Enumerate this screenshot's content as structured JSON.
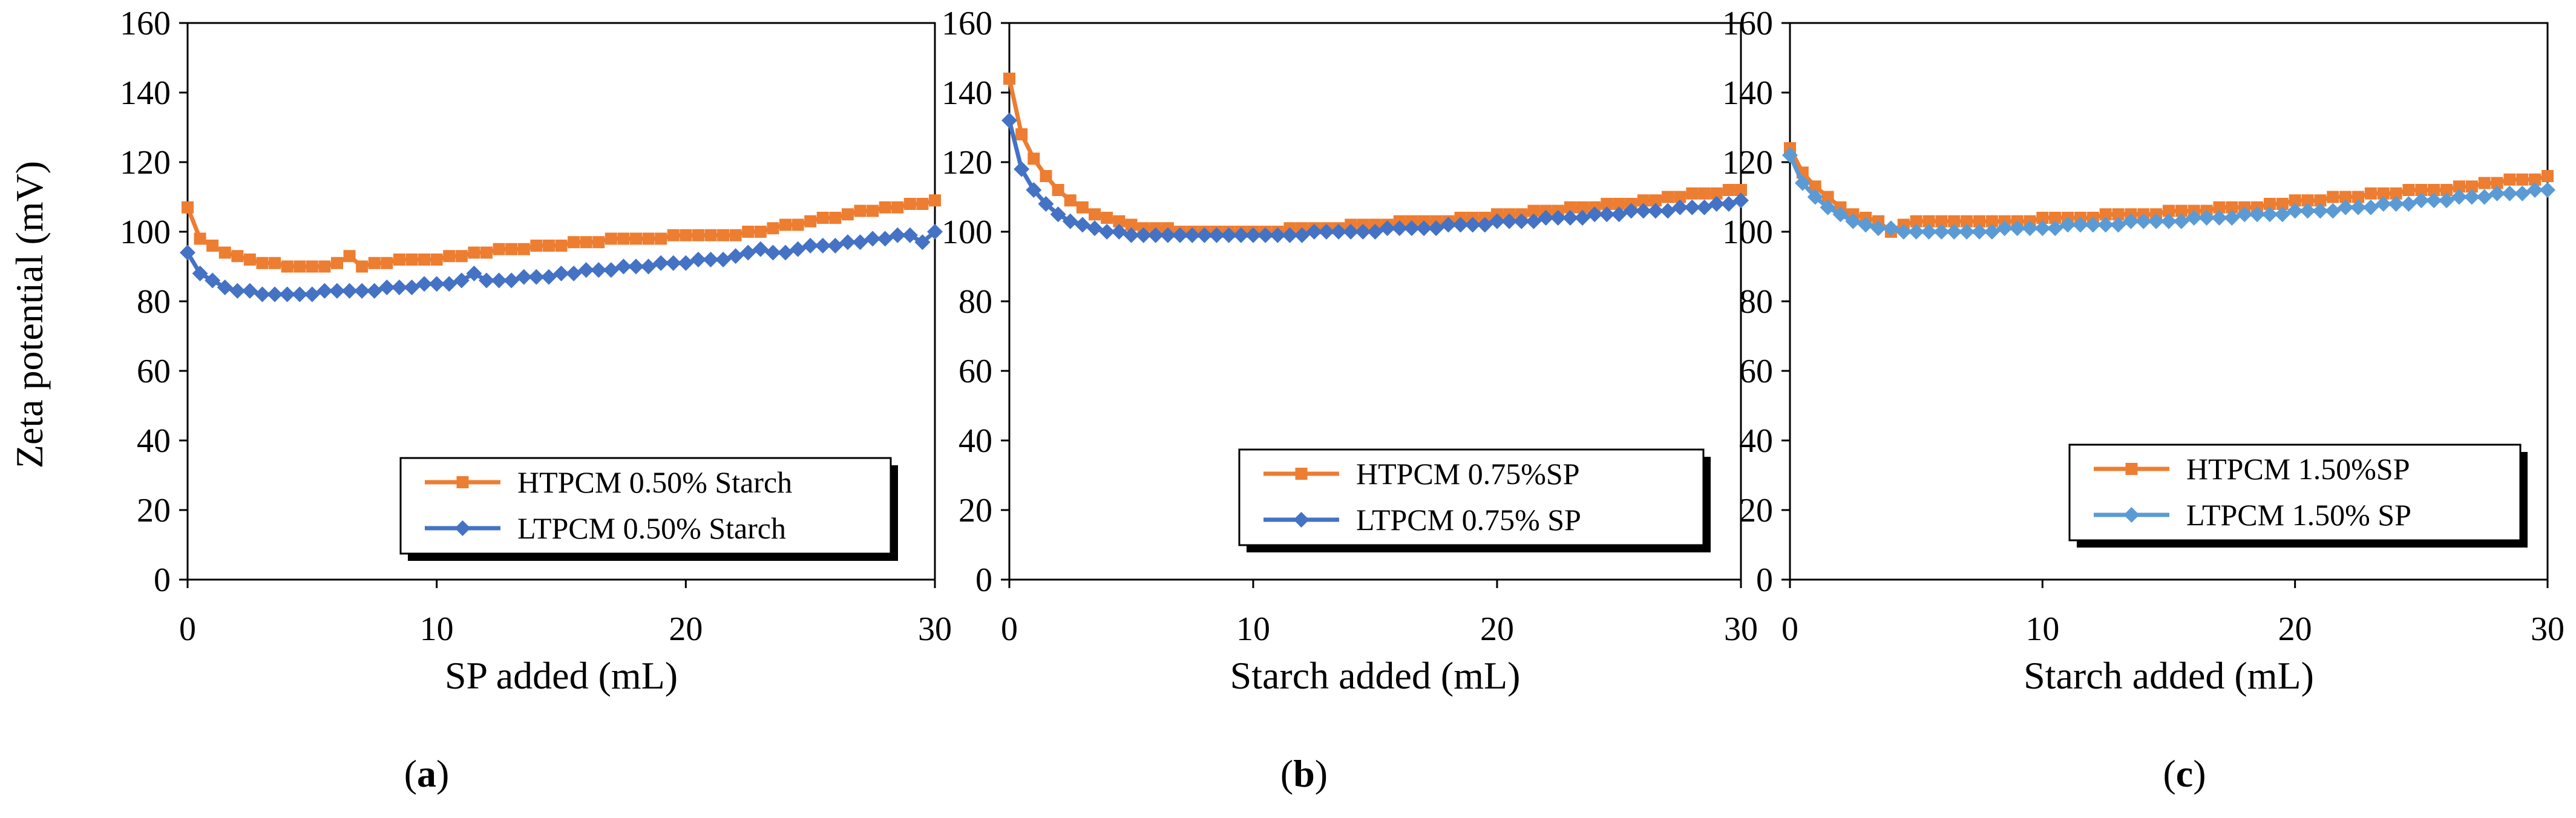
{
  "figure": {
    "y_axis_label": "Zeta potential (mV)"
  },
  "chart_data": [
    {
      "type": "line",
      "panel": "a",
      "caption": "(a)",
      "caption_letter": "a",
      "xlabel": "SP added (mL)",
      "ylabel": "Zeta potential (mV)",
      "xlim": [
        0,
        30
      ],
      "ylim": [
        0,
        160
      ],
      "xticks": [
        0,
        10,
        20,
        30
      ],
      "yticks": [
        0,
        20,
        40,
        60,
        80,
        100,
        120,
        140,
        160
      ],
      "grid": false,
      "legend_position": "bottom-right",
      "series": [
        {
          "name": "HTPCM 0.50% Starch",
          "color": "#ED7D31",
          "marker": "square",
          "x": [
            0,
            0.5,
            1,
            1.5,
            2,
            2.5,
            3,
            3.5,
            4,
            4.5,
            5,
            5.5,
            6,
            6.5,
            7,
            7.5,
            8,
            8.5,
            9,
            9.5,
            10,
            10.5,
            11,
            11.5,
            12,
            12.5,
            13,
            13.5,
            14,
            14.5,
            15,
            15.5,
            16,
            16.5,
            17,
            17.5,
            18,
            18.5,
            19,
            19.5,
            20,
            20.5,
            21,
            21.5,
            22,
            22.5,
            23,
            23.5,
            24,
            24.5,
            25,
            25.5,
            26,
            26.5,
            27,
            27.5,
            28,
            28.5,
            29,
            29.5,
            30
          ],
          "y": [
            107,
            98,
            96,
            94,
            93,
            92,
            91,
            91,
            90,
            90,
            90,
            90,
            91,
            93,
            90,
            91,
            91,
            92,
            92,
            92,
            92,
            93,
            93,
            94,
            94,
            95,
            95,
            95,
            96,
            96,
            96,
            97,
            97,
            97,
            98,
            98,
            98,
            98,
            98,
            99,
            99,
            99,
            99,
            99,
            99,
            100,
            100,
            101,
            102,
            102,
            103,
            104,
            104,
            105,
            106,
            106,
            107,
            107,
            108,
            108,
            109
          ]
        },
        {
          "name": "LTPCM 0.50% Starch",
          "color": "#4472C4",
          "marker": "diamond",
          "x": [
            0,
            0.5,
            1,
            1.5,
            2,
            2.5,
            3,
            3.5,
            4,
            4.5,
            5,
            5.5,
            6,
            6.5,
            7,
            7.5,
            8,
            8.5,
            9,
            9.5,
            10,
            10.5,
            11,
            11.5,
            12,
            12.5,
            13,
            13.5,
            14,
            14.5,
            15,
            15.5,
            16,
            16.5,
            17,
            17.5,
            18,
            18.5,
            19,
            19.5,
            20,
            20.5,
            21,
            21.5,
            22,
            22.5,
            23,
            23.5,
            24,
            24.5,
            25,
            25.5,
            26,
            26.5,
            27,
            27.5,
            28,
            28.5,
            29,
            29.5,
            30
          ],
          "y": [
            94,
            88,
            86,
            84,
            83,
            83,
            82,
            82,
            82,
            82,
            82,
            83,
            83,
            83,
            83,
            83,
            84,
            84,
            84,
            85,
            85,
            85,
            86,
            88,
            86,
            86,
            86,
            87,
            87,
            87,
            88,
            88,
            89,
            89,
            89,
            90,
            90,
            90,
            91,
            91,
            91,
            92,
            92,
            92,
            93,
            94,
            95,
            94,
            94,
            95,
            96,
            96,
            96,
            97,
            97,
            98,
            98,
            99,
            99,
            97,
            100
          ]
        }
      ]
    },
    {
      "type": "line",
      "panel": "b",
      "caption": "(b)",
      "caption_letter": "b",
      "xlabel": "Starch added (mL)",
      "ylabel": "Zeta potential (mV)",
      "xlim": [
        0,
        30
      ],
      "ylim": [
        0,
        160
      ],
      "xticks": [
        0,
        10,
        20,
        30
      ],
      "yticks": [
        0,
        20,
        40,
        60,
        80,
        100,
        120,
        140,
        160
      ],
      "grid": false,
      "legend_position": "bottom-right",
      "series": [
        {
          "name": "HTPCM 0.75%SP",
          "color": "#ED7D31",
          "marker": "square",
          "x": [
            0,
            0.5,
            1,
            1.5,
            2,
            2.5,
            3,
            3.5,
            4,
            4.5,
            5,
            5.5,
            6,
            6.5,
            7,
            7.5,
            8,
            8.5,
            9,
            9.5,
            10,
            10.5,
            11,
            11.5,
            12,
            12.5,
            13,
            13.5,
            14,
            14.5,
            15,
            15.5,
            16,
            16.5,
            17,
            17.5,
            18,
            18.5,
            19,
            19.5,
            20,
            20.5,
            21,
            21.5,
            22,
            22.5,
            23,
            23.5,
            24,
            24.5,
            25,
            25.5,
            26,
            26.5,
            27,
            27.5,
            28,
            28.5,
            29,
            29.5,
            30
          ],
          "y": [
            144,
            128,
            121,
            116,
            112,
            109,
            107,
            105,
            104,
            103,
            102,
            101,
            101,
            101,
            100,
            100,
            100,
            100,
            100,
            100,
            100,
            100,
            100,
            101,
            101,
            101,
            101,
            101,
            102,
            102,
            102,
            102,
            103,
            103,
            103,
            103,
            103,
            104,
            104,
            104,
            105,
            105,
            105,
            106,
            106,
            106,
            107,
            107,
            107,
            108,
            108,
            108,
            109,
            109,
            110,
            110,
            111,
            111,
            111,
            112,
            112
          ]
        },
        {
          "name": "LTPCM 0.75% SP",
          "color": "#4472C4",
          "marker": "diamond",
          "x": [
            0,
            0.5,
            1,
            1.5,
            2,
            2.5,
            3,
            3.5,
            4,
            4.5,
            5,
            5.5,
            6,
            6.5,
            7,
            7.5,
            8,
            8.5,
            9,
            9.5,
            10,
            10.5,
            11,
            11.5,
            12,
            12.5,
            13,
            13.5,
            14,
            14.5,
            15,
            15.5,
            16,
            16.5,
            17,
            17.5,
            18,
            18.5,
            19,
            19.5,
            20,
            20.5,
            21,
            21.5,
            22,
            22.5,
            23,
            23.5,
            24,
            24.5,
            25,
            25.5,
            26,
            26.5,
            27,
            27.5,
            28,
            28.5,
            29,
            29.5,
            30
          ],
          "y": [
            132,
            118,
            112,
            108,
            105,
            103,
            102,
            101,
            100,
            100,
            99,
            99,
            99,
            99,
            99,
            99,
            99,
            99,
            99,
            99,
            99,
            99,
            99,
            99,
            99,
            100,
            100,
            100,
            100,
            100,
            100,
            101,
            101,
            101,
            101,
            101,
            102,
            102,
            102,
            102,
            103,
            103,
            103,
            103,
            104,
            104,
            104,
            104,
            105,
            105,
            105,
            106,
            106,
            106,
            106,
            107,
            107,
            107,
            108,
            108,
            109
          ]
        }
      ]
    },
    {
      "type": "line",
      "panel": "c",
      "caption": "(c)",
      "caption_letter": "c",
      "xlabel": "Starch added (mL)",
      "ylabel": "Zeta potential (mV)",
      "xlim": [
        0,
        30
      ],
      "ylim": [
        0,
        160
      ],
      "xticks": [
        0,
        10,
        20,
        30
      ],
      "yticks": [
        0,
        20,
        40,
        60,
        80,
        100,
        120,
        140,
        160
      ],
      "grid": false,
      "legend_position": "bottom-right",
      "series": [
        {
          "name": "HTPCM 1.50%SP",
          "color": "#ED7D31",
          "marker": "square",
          "x": [
            0,
            0.5,
            1,
            1.5,
            2,
            2.5,
            3,
            3.5,
            4,
            4.5,
            5,
            5.5,
            6,
            6.5,
            7,
            7.5,
            8,
            8.5,
            9,
            9.5,
            10,
            10.5,
            11,
            11.5,
            12,
            12.5,
            13,
            13.5,
            14,
            14.5,
            15,
            15.5,
            16,
            16.5,
            17,
            17.5,
            18,
            18.5,
            19,
            19.5,
            20,
            20.5,
            21,
            21.5,
            22,
            22.5,
            23,
            23.5,
            24,
            24.5,
            25,
            25.5,
            26,
            26.5,
            27,
            27.5,
            28,
            28.5,
            29,
            29.5,
            30
          ],
          "y": [
            124,
            117,
            113,
            110,
            107,
            105,
            104,
            103,
            100,
            102,
            103,
            103,
            103,
            103,
            103,
            103,
            103,
            103,
            103,
            103,
            104,
            104,
            104,
            104,
            104,
            105,
            105,
            105,
            105,
            105,
            106,
            106,
            106,
            106,
            107,
            107,
            107,
            107,
            108,
            108,
            109,
            109,
            109,
            110,
            110,
            110,
            111,
            111,
            111,
            112,
            112,
            112,
            112,
            113,
            113,
            114,
            114,
            115,
            115,
            115,
            116
          ]
        },
        {
          "name": "LTPCM 1.50% SP",
          "color": "#5B9BD5",
          "marker": "diamond",
          "x": [
            0,
            0.5,
            1,
            1.5,
            2,
            2.5,
            3,
            3.5,
            4,
            4.5,
            5,
            5.5,
            6,
            6.5,
            7,
            7.5,
            8,
            8.5,
            9,
            9.5,
            10,
            10.5,
            11,
            11.5,
            12,
            12.5,
            13,
            13.5,
            14,
            14.5,
            15,
            15.5,
            16,
            16.5,
            17,
            17.5,
            18,
            18.5,
            19,
            19.5,
            20,
            20.5,
            21,
            21.5,
            22,
            22.5,
            23,
            23.5,
            24,
            24.5,
            25,
            25.5,
            26,
            26.5,
            27,
            27.5,
            28,
            28.5,
            29,
            29.5,
            30
          ],
          "y": [
            122,
            114,
            110,
            107,
            105,
            103,
            102,
            101,
            101,
            100,
            100,
            100,
            100,
            100,
            100,
            100,
            100,
            101,
            101,
            101,
            101,
            101,
            102,
            102,
            102,
            102,
            102,
            103,
            103,
            103,
            103,
            103,
            104,
            104,
            104,
            104,
            105,
            105,
            105,
            105,
            106,
            106,
            106,
            106,
            107,
            107,
            107,
            108,
            108,
            108,
            109,
            109,
            109,
            110,
            110,
            110,
            111,
            111,
            111,
            112,
            112
          ]
        }
      ]
    }
  ]
}
